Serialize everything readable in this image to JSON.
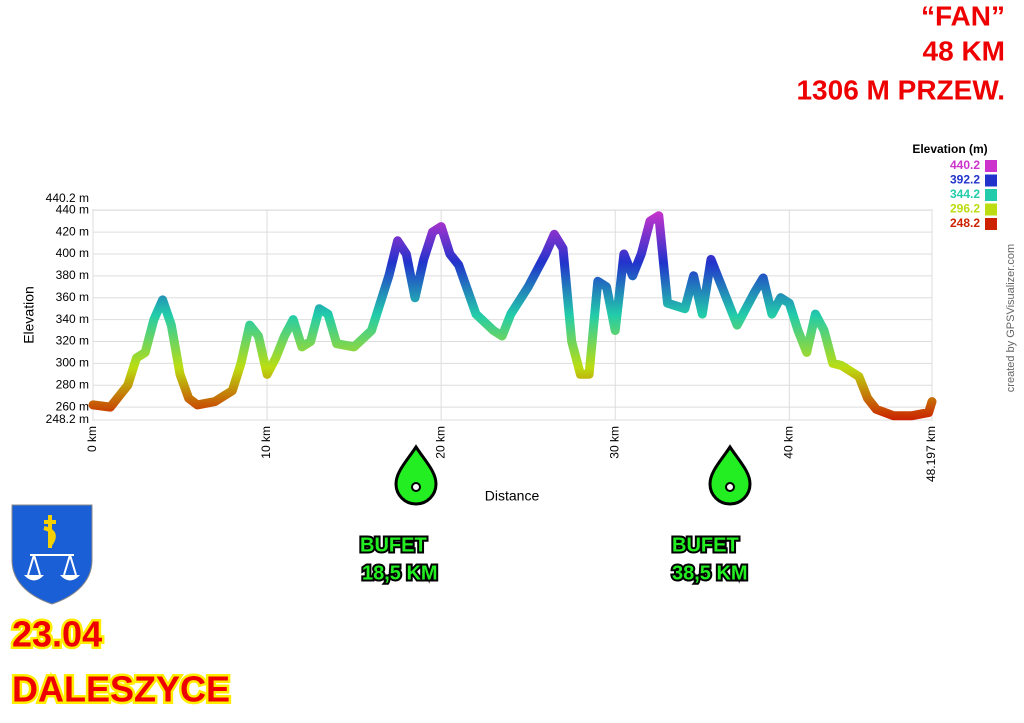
{
  "chart_data": {
    "type": "line",
    "header": [
      "“FAN”",
      "48 KM",
      "1306 M PRZEW."
    ],
    "xlabel": "Distance",
    "ylabel": "Elevation",
    "legend_title": "Elevation (m)",
    "color_scale": [
      {
        "value": 440.2,
        "color": "#cc33cc"
      },
      {
        "value": 392.2,
        "color": "#2233cc"
      },
      {
        "value": 344.2,
        "color": "#22ccaa"
      },
      {
        "value": 296.2,
        "color": "#bbdd11"
      },
      {
        "value": 248.2,
        "color": "#cc2200"
      }
    ],
    "credit": "created by GPSVisualizer.com",
    "annotations": [
      [
        "BUFET",
        "18,5 KM"
      ],
      [
        "BUFET",
        "38,5 KM"
      ]
    ],
    "date": "23.04",
    "place": "DALESZYCE",
    "xlim": [
      0,
      48.197
    ],
    "xticks": [
      {
        "value": 0,
        "label": "0 km"
      },
      {
        "value": 10,
        "label": "10 km"
      },
      {
        "value": 20,
        "label": "20 km"
      },
      {
        "value": 30,
        "label": "30 km"
      },
      {
        "value": 40,
        "label": "40 km"
      },
      {
        "value": 48.197,
        "label": "48.197 km"
      }
    ],
    "ylim": [
      248.2,
      440.2
    ],
    "yticks": [
      {
        "value": 248.2,
        "label": "248.2 m"
      },
      {
        "value": 260,
        "label": "260 m"
      },
      {
        "value": 280,
        "label": "280 m"
      },
      {
        "value": 300,
        "label": "300 m"
      },
      {
        "value": 320,
        "label": "320 m"
      },
      {
        "value": 340,
        "label": "340 m"
      },
      {
        "value": 360,
        "label": "360 m"
      },
      {
        "value": 380,
        "label": "380 m"
      },
      {
        "value": 400,
        "label": "400 m"
      },
      {
        "value": 420,
        "label": "420 m"
      },
      {
        "value": 440,
        "label": "440 m"
      },
      {
        "value": 440.2,
        "label": "440.2 m"
      }
    ],
    "grid": true,
    "x": [
      0,
      1,
      2,
      2.5,
      3,
      3.5,
      4,
      4.5,
      5,
      5.5,
      6,
      7,
      8,
      8.5,
      9,
      9.5,
      10,
      10.5,
      11,
      11.5,
      12,
      12.5,
      13,
      13.5,
      14,
      15,
      16,
      17,
      17.5,
      18,
      18.5,
      19,
      19.5,
      20,
      20.5,
      21,
      22,
      23,
      23.5,
      24,
      25,
      26,
      26.5,
      27,
      27.5,
      28,
      28.5,
      29,
      29.5,
      30,
      30.5,
      31,
      31.5,
      32,
      32.5,
      33,
      34,
      34.5,
      35,
      35.5,
      36,
      37,
      38,
      38.5,
      39,
      39.5,
      40,
      40.5,
      41,
      41.5,
      42,
      42.5,
      43,
      44,
      44.5,
      45,
      46,
      47,
      48,
      48.197
    ],
    "values": [
      262,
      260,
      280,
      305,
      310,
      340,
      358,
      335,
      290,
      268,
      262,
      265,
      275,
      300,
      335,
      325,
      290,
      305,
      325,
      340,
      315,
      320,
      350,
      345,
      318,
      315,
      330,
      380,
      412,
      400,
      360,
      395,
      420,
      425,
      400,
      390,
      345,
      330,
      325,
      345,
      370,
      400,
      418,
      405,
      320,
      290,
      290,
      375,
      370,
      330,
      400,
      380,
      400,
      430,
      435,
      355,
      350,
      380,
      345,
      395,
      375,
      335,
      365,
      378,
      345,
      360,
      355,
      330,
      310,
      345,
      330,
      300,
      298,
      288,
      268,
      258,
      252,
      252,
      255,
      265
    ]
  }
}
